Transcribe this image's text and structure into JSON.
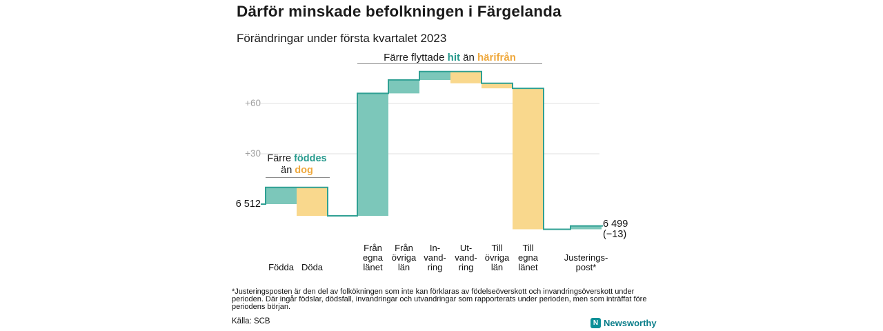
{
  "chart_data": {
    "type": "waterfall",
    "title": "Därför minskade befolkningen i Färgelanda",
    "subtitle": "Förändringar under första kvartalet 2023",
    "start": {
      "label": "6 512",
      "value": 6512
    },
    "end": {
      "label_line1": "6 499",
      "label_line2": "(−13)",
      "value": 6499,
      "net_change": -13
    },
    "y_ticks": [
      {
        "value": 60,
        "label": "+60"
      },
      {
        "value": 30,
        "label": "+30"
      }
    ],
    "categories": [
      "Födda",
      "Döda",
      "Från egna länet",
      "Från övriga län",
      "Invandring",
      "Utvandring",
      "Till övriga län",
      "Till egna länet",
      "Justeringspost*"
    ],
    "category_label_lines": [
      [
        "Födda"
      ],
      [
        "Döda"
      ],
      [
        "Från",
        "egna",
        "länet"
      ],
      [
        "Från",
        "övriga",
        "län"
      ],
      [
        "In-",
        "vand-",
        "ring"
      ],
      [
        "Ut-",
        "vand-",
        "ring"
      ],
      [
        "Till",
        "övriga",
        "län"
      ],
      [
        "Till",
        "egna",
        "länet"
      ],
      [
        "Justerings-",
        "post*"
      ]
    ],
    "changes": [
      10,
      -17,
      73,
      8,
      5,
      -7,
      -3,
      -84,
      2
    ],
    "grid": true,
    "legend": false,
    "colors": {
      "increase_fill": "#7cc7ba",
      "decrease_fill": "#f9d88d",
      "step_line": "#2fa093",
      "grid": "#e2e2e2",
      "annotation_teal": "#279a8d",
      "annotation_orange": "#efa93e"
    },
    "annotations": [
      {
        "text": "Färre föddes än dog",
        "pre": "Färre ",
        "highlight1": "föddes",
        "mid": "än ",
        "highlight2": "dog"
      },
      {
        "text": "Färre flyttade hit än härifrån",
        "pre": "Färre flyttade ",
        "highlight1": "hit",
        "mid": " än ",
        "highlight2": "härifrån"
      }
    ]
  },
  "footnote": "*Justeringsposten är den del av folkökningen som inte kan förklaras av födelseöverskott och invandringsöverskott under perioden. Där ingår födslar, dödsfall, invandringar och utvandringar som rapporterats under perioden, men som inträffat före periodens början.",
  "source": "Källa: SCB",
  "logo": {
    "text": "Newsworthy",
    "icon_letter": "N"
  }
}
